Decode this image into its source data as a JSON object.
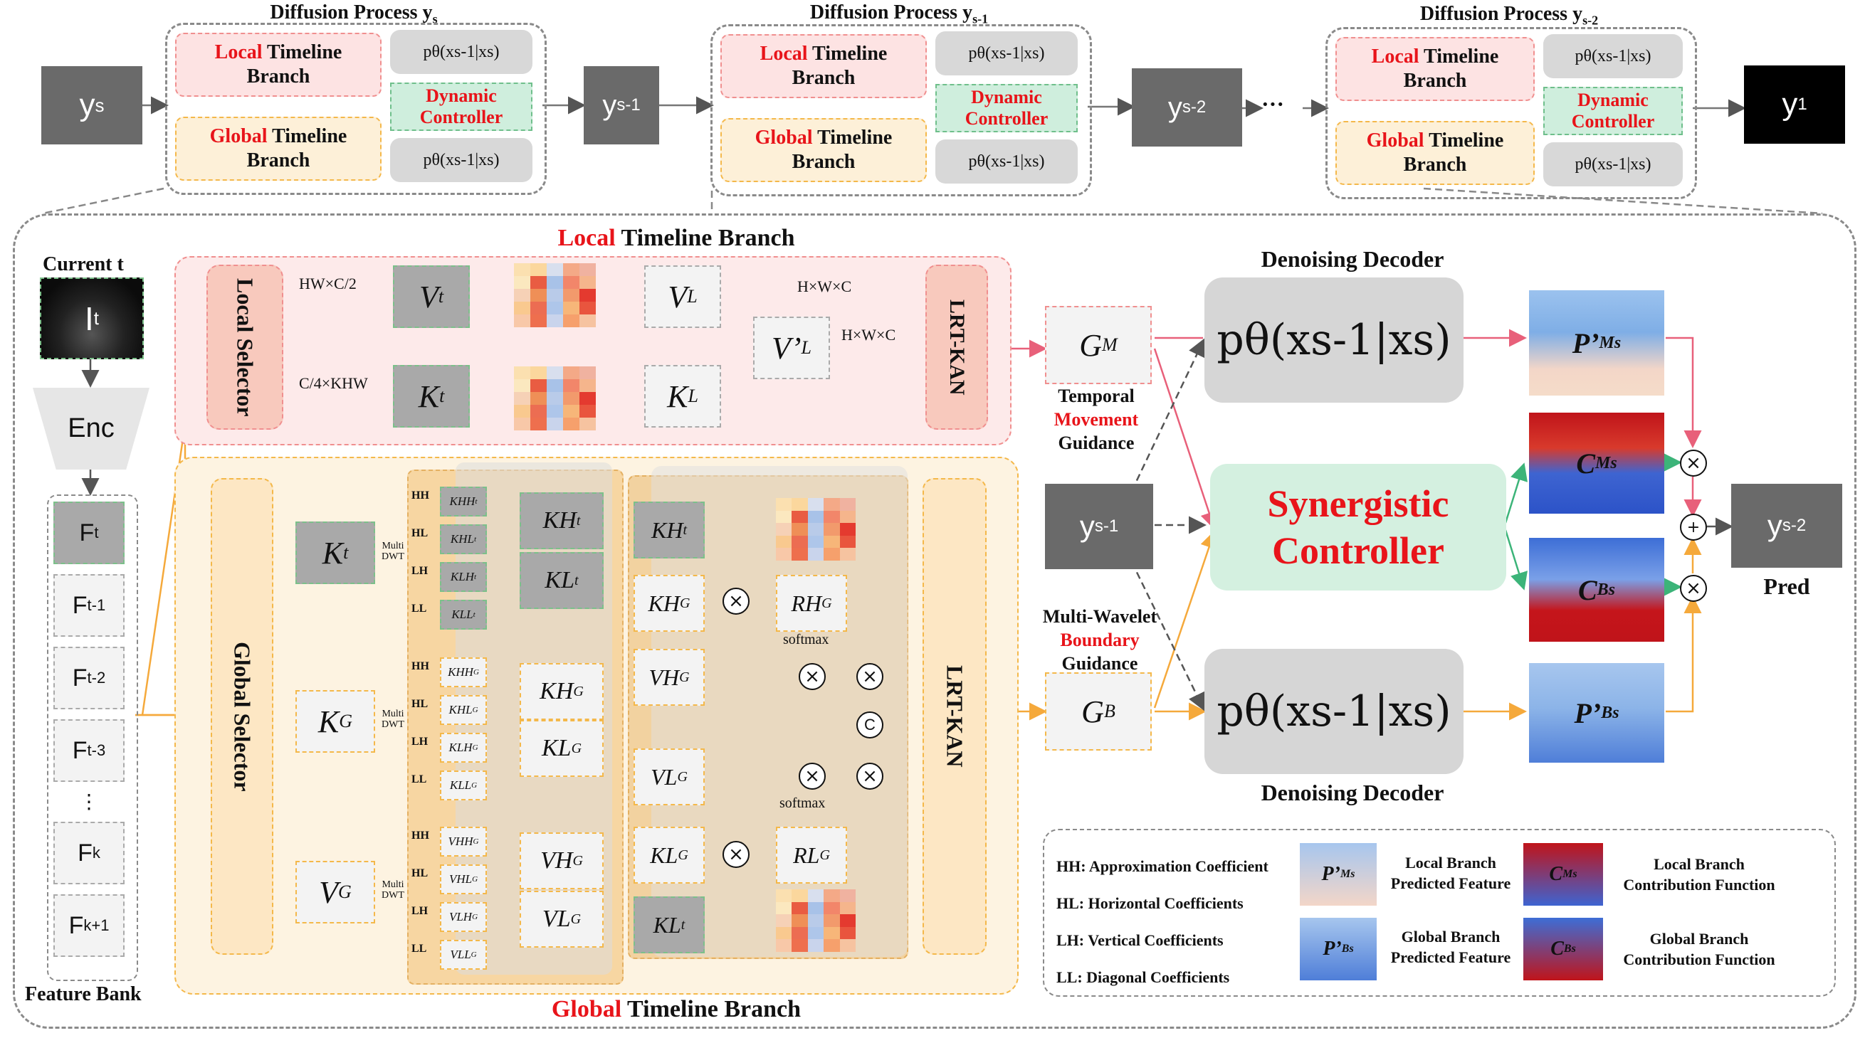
{
  "colors": {
    "local": "#fde3e3",
    "global": "#fdf0d8",
    "controller": "#cfeedd",
    "accent_red": "#e8141a",
    "arrow_local": "#e8607a",
    "arrow_global": "#f5a93b",
    "arrow_green": "#3cb479"
  },
  "diffusion": {
    "stages": [
      {
        "title_main": "Diffusion Process y",
        "title_sub": "s",
        "local_red": "Local",
        "global_red": "Global",
        "branch_word": " Timeline",
        "branch_line2": "Branch",
        "controller_l1": "Dynamic",
        "controller_l2": "Controller",
        "ptheta": "pθ(xs-1|xs)"
      },
      {
        "title_main": "Diffusion Process y",
        "title_sub": "s-1",
        "local_red": "Local",
        "global_red": "Global",
        "branch_word": " Timeline",
        "branch_line2": "Branch",
        "controller_l1": "Dynamic",
        "controller_l2": "Controller",
        "ptheta": "pθ(xs-1|xs)"
      },
      {
        "title_main": "Diffusion Process y",
        "title_sub": "s-2",
        "local_red": "Local",
        "global_red": "Global",
        "branch_word": " Timeline",
        "branch_line2": "Branch",
        "controller_l1": "Dynamic",
        "controller_l2": "Controller",
        "ptheta": "pθ(xs-1|xs)"
      }
    ],
    "inputs": [
      {
        "main": "y",
        "sub": "s"
      },
      {
        "main": "y",
        "sub": "s-1"
      },
      {
        "main": "y",
        "sub": "s-2"
      },
      {
        "main": "y",
        "sub": "1"
      }
    ],
    "ellipsis": "···"
  },
  "left": {
    "current_label": "Current t",
    "image_label": "I",
    "image_sub": "t",
    "enc": "Enc",
    "feature_bank": "Feature Bank",
    "features": [
      {
        "m": "F",
        "s": "t"
      },
      {
        "m": "F",
        "s": "t-1"
      },
      {
        "m": "F",
        "s": "t-2"
      },
      {
        "m": "F",
        "s": "t-3"
      },
      {
        "m": "⋮",
        "s": ""
      },
      {
        "m": "F",
        "s": "k"
      },
      {
        "m": "F",
        "s": "k+1"
      }
    ]
  },
  "local_branch": {
    "title_red": "Local",
    "title_rest": " Timeline Branch",
    "selector": "Local Selector",
    "dim1": "HW×C/2",
    "dim2": "C/4×KHW",
    "dim3": "H×W×C",
    "dim4": "H×W×C",
    "vt": "V",
    "vt_sub": "t",
    "kt": "K",
    "kt_sub": "t",
    "vl": "V",
    "vl_sub": "L",
    "kl": "K",
    "kl_sub": "L",
    "vpl": "V’",
    "vpl_sub": "L",
    "lrt": "LRT-KAN"
  },
  "global_branch": {
    "title_red": "Global",
    "title_rest": " Timeline Branch",
    "selector": "Global Selector",
    "lrt": "LRT-KAN",
    "multi": "Multi",
    "dwt": "DWT",
    "softmax": "softmax",
    "sub_labels": [
      "HH",
      "HL",
      "LH",
      "LL"
    ],
    "rows": [
      {
        "k": "K",
        "ks": "t",
        "items": [
          "KHH",
          "KHL",
          "KLH",
          "KLL"
        ],
        "items_sub": "t",
        "mid": [
          "KH",
          "KL"
        ],
        "mid_sub": "t"
      },
      {
        "k": "K",
        "ks": "G",
        "items": [
          "KHH",
          "KHL",
          "KLH",
          "KLL"
        ],
        "items_sub": "G",
        "mid": [
          "KH",
          "KL"
        ],
        "mid_sub": "G"
      },
      {
        "k": "V",
        "ks": "G",
        "items": [
          "VHH",
          "VHL",
          "VLH",
          "VLL"
        ],
        "items_sub": "G",
        "mid": [
          "VH",
          "VL"
        ],
        "mid_sub": "G"
      }
    ],
    "right_col": [
      {
        "m": "KH",
        "s": "t"
      },
      {
        "m": "KH",
        "s": "G"
      },
      {
        "m": "VH",
        "s": "G"
      },
      {
        "m": "VL",
        "s": "G"
      },
      {
        "m": "KL",
        "s": "G"
      },
      {
        "m": "KL",
        "s": "t"
      }
    ],
    "rh": "RH",
    "rh_sub": "G",
    "rl": "RL",
    "rl_sub": "G",
    "concat": "C"
  },
  "guidance": {
    "gm": "G",
    "gm_sub": "M",
    "temporal_l1": "Temporal",
    "temporal_red": "Movement",
    "temporal_l3": "Guidance",
    "gb": "G",
    "gb_sub": "B",
    "mw_l1": "Multi-Wavelet",
    "mw_red": "Boundary",
    "mw_l3": "Guidance"
  },
  "decoder": {
    "title_top": "Denoising Decoder",
    "title_bottom": "Denoising Decoder",
    "ptheta": "pθ(xs-1|xs)",
    "controller_l1": "Synergistic",
    "controller_l2": "Controller",
    "ys1_m": "y",
    "ys1_s": "s-1",
    "pred_m": "y",
    "pred_s": "s-2",
    "pred_label": "Pred",
    "maps": [
      {
        "m": "P’",
        "s": "s",
        "sup": "M"
      },
      {
        "m": "C",
        "s": "s",
        "sup": "M"
      },
      {
        "m": "C",
        "s": "s",
        "sup": "B"
      },
      {
        "m": "P’",
        "s": "s",
        "sup": "B"
      }
    ]
  },
  "legend": {
    "items": [
      "HH: Approximation Coefficient",
      "HL: Horizontal Coefficients",
      "LH: Vertical Coefficients",
      "LL: Diagonal Coefficients"
    ],
    "lp1": "Local Branch",
    "lp2": "Predicted Feature",
    "gp1": "Global Branch",
    "gp2": "Predicted Feature",
    "lc1": "Local Branch",
    "lc2": "Contribution Function",
    "gc1": "Global Branch",
    "gc2": "Contribution Function"
  }
}
